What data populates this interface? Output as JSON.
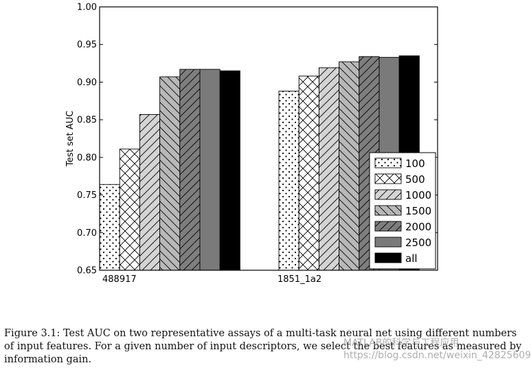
{
  "chart_data": {
    "type": "bar",
    "title": "",
    "xlabel": "",
    "ylabel": "Test set AUC",
    "ylim": [
      0.65,
      1.0
    ],
    "yticks": [
      "0.65",
      "0.70",
      "0.75",
      "0.80",
      "0.85",
      "0.90",
      "0.95",
      "1.00"
    ],
    "categories": [
      "488917",
      "1851_1a2"
    ],
    "series": [
      {
        "name": "100",
        "values": [
          0.764,
          0.888
        ]
      },
      {
        "name": "500",
        "values": [
          0.811,
          0.908
        ]
      },
      {
        "name": "1000",
        "values": [
          0.857,
          0.919
        ]
      },
      {
        "name": "1500",
        "values": [
          0.907,
          0.927
        ]
      },
      {
        "name": "2000",
        "values": [
          0.917,
          0.934
        ]
      },
      {
        "name": "2500",
        "values": [
          0.917,
          0.933
        ]
      },
      {
        "name": "all",
        "values": [
          0.915,
          0.935
        ]
      }
    ],
    "grid": false,
    "legend_position": "lower-right"
  },
  "styles": {
    "series_fills": [
      "#ffffff",
      "#ffffff",
      "#d4d4d4",
      "#b8b8b8",
      "#7e7e7e",
      "#7a7a7a",
      "#000000"
    ],
    "series_patterns": [
      "dots",
      "cross",
      "forward-diagonal",
      "back-diagonal",
      "forward-diagonal",
      "none",
      "none"
    ]
  },
  "caption": {
    "text": "Figure 3.1: Test AUC on two representative assays of a multi-task neural net using different numbers of input features. For a given number of input descriptors, we select the best features as measured by information gain."
  },
  "watermark": {
    "line1": "MATLAB的科学与工程应用",
    "line2": "https://blog.csdn.net/weixin_42825609"
  }
}
